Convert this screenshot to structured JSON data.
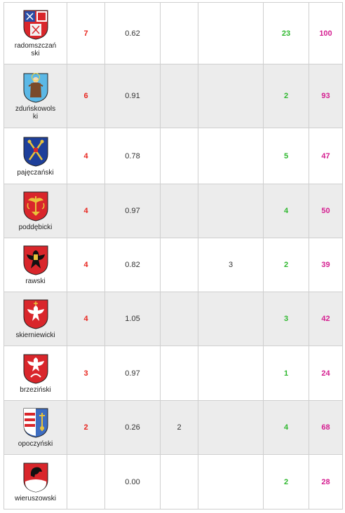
{
  "rows": [
    {
      "county": "radomszczański",
      "name_lines": [
        "radomszczań",
        "ski"
      ],
      "a": "7",
      "b": "0.62",
      "c": "",
      "d": "",
      "e": "23",
      "f": "100",
      "crest": "radomszczanski-coat-of-arms"
    },
    {
      "county": "zduńskowolski",
      "name_lines": [
        "zduńskowols",
        "ki"
      ],
      "a": "6",
      "b": "0.91",
      "c": "",
      "d": "",
      "e": "2",
      "f": "93",
      "crest": "zdunskowolski-coat-of-arms"
    },
    {
      "county": "pajęczański",
      "name_lines": [
        "pajęczański"
      ],
      "a": "4",
      "b": "0.78",
      "c": "",
      "d": "",
      "e": "5",
      "f": "47",
      "crest": "pajeczanski-coat-of-arms"
    },
    {
      "county": "poddębicki",
      "name_lines": [
        "poddębicki"
      ],
      "a": "4",
      "b": "0.97",
      "c": "",
      "d": "",
      "e": "4",
      "f": "50",
      "crest": "poddebicki-coat-of-arms"
    },
    {
      "county": "rawski",
      "name_lines": [
        "rawski"
      ],
      "a": "4",
      "b": "0.82",
      "c": "",
      "d": "3",
      "e": "2",
      "f": "39",
      "crest": "rawski-coat-of-arms"
    },
    {
      "county": "skierniewicki",
      "name_lines": [
        "skierniewicki"
      ],
      "a": "4",
      "b": "1.05",
      "c": "",
      "d": "",
      "e": "3",
      "f": "42",
      "crest": "skierniewicki-coat-of-arms"
    },
    {
      "county": "brzeziński",
      "name_lines": [
        "brzeziński"
      ],
      "a": "3",
      "b": "0.97",
      "c": "",
      "d": "",
      "e": "1",
      "f": "24",
      "crest": "brzezinski-coat-of-arms"
    },
    {
      "county": "opoczyński",
      "name_lines": [
        "opoczyński"
      ],
      "a": "2",
      "b": "0.26",
      "c": "2",
      "d": "",
      "e": "4",
      "f": "68",
      "crest": "opoczynski-coat-of-arms"
    },
    {
      "county": "wieruszowski",
      "name_lines": [
        "wieruszowski"
      ],
      "a": "",
      "b": "0.00",
      "c": "",
      "d": "",
      "e": "2",
      "f": "28",
      "crest": "wieruszowski-coat-of-arms"
    }
  ],
  "colors": {
    "a": "#e8261f",
    "e": "#2fb82f",
    "f": "#d51f91",
    "row_alt": "#ececec",
    "border": "#cfcfcf"
  }
}
